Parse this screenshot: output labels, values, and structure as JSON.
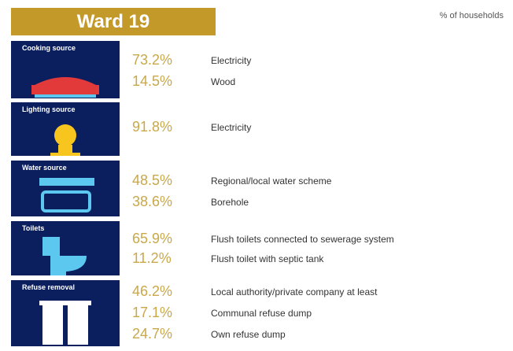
{
  "header": {
    "title": "Ward 19",
    "note": "% of households"
  },
  "sections": [
    {
      "label": "Cooking source",
      "items": [
        {
          "value": "73.2%",
          "label": "Electricity"
        },
        {
          "value": "14.5%",
          "label": "Wood"
        }
      ]
    },
    {
      "label": "Lighting source",
      "items": [
        {
          "value": "91.8%",
          "label": "Electricity"
        }
      ]
    },
    {
      "label": "Water source",
      "items": [
        {
          "value": "48.5%",
          "label": "Regional/local water scheme"
        },
        {
          "value": "38.6%",
          "label": "Borehole"
        }
      ]
    },
    {
      "label": "Toilets",
      "items": [
        {
          "value": "65.9%",
          "label": "Flush toilets connected to sewerage system"
        },
        {
          "value": "11.2%",
          "label": "Flush toilet with septic tank"
        }
      ]
    },
    {
      "label": "Refuse removal",
      "items": [
        {
          "value": "46.2%",
          "label": "Local authority/private company at least"
        },
        {
          "value": "17.1%",
          "label": "Communal refuse dump"
        },
        {
          "value": "24.7%",
          "label": "Own refuse dump"
        }
      ]
    }
  ]
}
